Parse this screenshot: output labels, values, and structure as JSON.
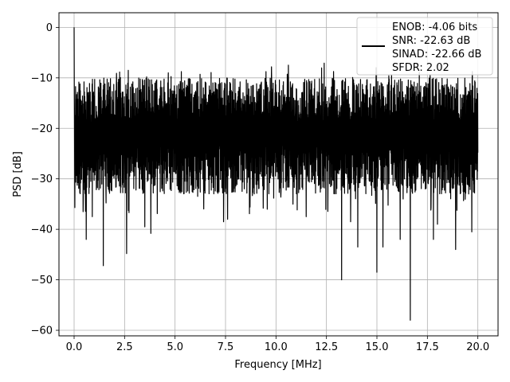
{
  "chart_data": {
    "type": "line",
    "title": "",
    "xlabel": "Frequency [MHz]",
    "ylabel": "PSD [dB]",
    "xlim": [
      -0.75,
      21.0
    ],
    "ylim": [
      -61.1,
      2.9
    ],
    "grid": true,
    "legend_position": "top-right",
    "line_color": "#000000",
    "x_ticks": [
      0.0,
      2.5,
      5.0,
      7.5,
      10.0,
      12.5,
      15.0,
      17.5,
      20.0
    ],
    "x_tick_labels": [
      "0.0",
      "2.5",
      "5.0",
      "7.5",
      "10.0",
      "12.5",
      "15.0",
      "17.5",
      "20.0"
    ],
    "y_ticks": [
      0,
      -10,
      -20,
      -30,
      -40,
      -50,
      -60
    ],
    "y_tick_labels": [
      "0",
      "−10",
      "−20",
      "−30",
      "−40",
      "−50",
      "−60"
    ],
    "legend_lines": [
      "ENOB: -4.06 bits",
      "SNR: -22.63 dB",
      "SINAD: -22.66 dB",
      "SFDR: 2.02"
    ],
    "series": [
      {
        "x_start": 0.0,
        "x_end": 20.0,
        "peak": {
          "x": 0.0,
          "y": 0.0
        },
        "noise_floor_range": [
          -33,
          -10
        ],
        "dips": [
          {
            "x": 0.45,
            "y": -36.5
          },
          {
            "x": 0.6,
            "y": -42.0
          },
          {
            "x": 0.9,
            "y": -37.5
          },
          {
            "x": 1.45,
            "y": -47.2
          },
          {
            "x": 2.6,
            "y": -44.8
          },
          {
            "x": 3.5,
            "y": -39.5
          },
          {
            "x": 3.8,
            "y": -40.8
          },
          {
            "x": 7.4,
            "y": -38.5
          },
          {
            "x": 7.6,
            "y": -38.0
          },
          {
            "x": 11.5,
            "y": -37.5
          },
          {
            "x": 13.25,
            "y": -50.0
          },
          {
            "x": 13.7,
            "y": -38.5
          },
          {
            "x": 14.05,
            "y": -43.5
          },
          {
            "x": 15.0,
            "y": -48.5
          },
          {
            "x": 15.3,
            "y": -43.5
          },
          {
            "x": 16.15,
            "y": -42.0
          },
          {
            "x": 16.65,
            "y": -58.0
          },
          {
            "x": 17.8,
            "y": -42.0
          },
          {
            "x": 18.0,
            "y": -39.0
          },
          {
            "x": 18.9,
            "y": -44.0
          },
          {
            "x": 19.7,
            "y": -40.5
          }
        ]
      }
    ]
  }
}
